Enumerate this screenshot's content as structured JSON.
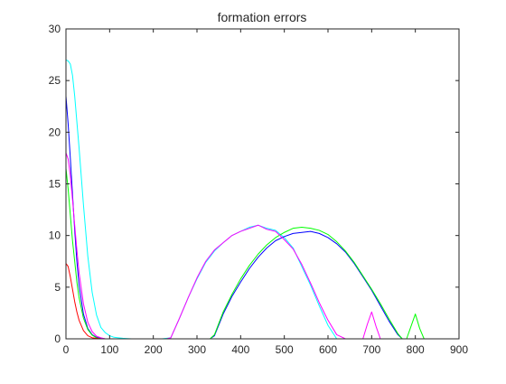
{
  "chart_data": {
    "type": "line",
    "title": "formation errors",
    "xlabel": "",
    "ylabel": "",
    "xlim": [
      0,
      900
    ],
    "ylim": [
      0,
      30
    ],
    "xticks": [
      0,
      100,
      200,
      300,
      400,
      500,
      600,
      700,
      800,
      900
    ],
    "yticks": [
      0,
      5,
      10,
      15,
      20,
      25,
      30
    ],
    "grid": false,
    "legend": "none",
    "series": [
      {
        "color": "#00ffff",
        "x": [
          0,
          5,
          10,
          15,
          20,
          25,
          30,
          40,
          50,
          60,
          70,
          80,
          90,
          100,
          110,
          120,
          130,
          150,
          200,
          220,
          240,
          260,
          280,
          300,
          320,
          340,
          360,
          380,
          400,
          420,
          440,
          460,
          480,
          500,
          520,
          540,
          560,
          580,
          600,
          620,
          640,
          660,
          680,
          700,
          720,
          740,
          760,
          780,
          800,
          850,
          900
        ],
        "y": [
          27,
          26.9,
          26.6,
          25.5,
          23.5,
          21,
          18.5,
          13,
          8,
          4.5,
          2.3,
          1.1,
          0.6,
          0.3,
          0.15,
          0.1,
          0.05,
          0,
          0,
          0,
          0.1,
          2,
          4,
          5.8,
          7.4,
          8.5,
          9.3,
          10,
          10.4,
          10.8,
          11,
          10.7,
          10.5,
          9.8,
          8.8,
          7,
          5.2,
          3.2,
          1.3,
          0,
          0,
          0,
          0,
          0,
          0,
          0,
          0,
          0,
          0,
          0,
          0
        ]
      },
      {
        "color": "#0000ff",
        "x": [
          0,
          5,
          10,
          15,
          20,
          25,
          30,
          40,
          50,
          60,
          70,
          80,
          90,
          100,
          110,
          120,
          200,
          300,
          330,
          340,
          360,
          380,
          400,
          420,
          440,
          460,
          480,
          500,
          520,
          540,
          560,
          580,
          600,
          620,
          640,
          660,
          680,
          700,
          720,
          740,
          760,
          770,
          780,
          800,
          850,
          900
        ],
        "y": [
          23.5,
          20.8,
          17.5,
          14,
          10.5,
          7.5,
          5.2,
          2.4,
          1,
          0.4,
          0.15,
          0.05,
          0,
          0,
          0,
          0,
          0,
          0,
          0,
          0.3,
          2.4,
          4.1,
          5.5,
          6.8,
          7.9,
          8.8,
          9.5,
          9.9,
          10.2,
          10.3,
          10.4,
          10.2,
          9.8,
          9.2,
          8.4,
          7.3,
          6,
          4.7,
          3.2,
          1.7,
          0.4,
          0,
          0,
          0,
          0,
          0
        ]
      },
      {
        "color": "#00ff00",
        "x": [
          0,
          5,
          10,
          15,
          20,
          25,
          30,
          40,
          50,
          60,
          70,
          80,
          90,
          100,
          120,
          200,
          300,
          330,
          340,
          360,
          380,
          400,
          420,
          440,
          460,
          480,
          500,
          520,
          540,
          560,
          580,
          600,
          620,
          640,
          660,
          680,
          700,
          720,
          740,
          760,
          770,
          780,
          790,
          800,
          810,
          820,
          850,
          900
        ],
        "y": [
          16.5,
          14.5,
          12,
          9.5,
          7.5,
          5.5,
          4,
          2,
          0.9,
          0.35,
          0.1,
          0,
          0,
          0,
          0,
          0,
          0,
          0,
          0.4,
          2.6,
          4.3,
          5.8,
          7.1,
          8.2,
          9.1,
          9.8,
          10.3,
          10.7,
          10.8,
          10.7,
          10.5,
          10.1,
          9.4,
          8.5,
          7.4,
          6.1,
          4.8,
          3.4,
          1.9,
          0.5,
          0,
          0,
          1.2,
          2.4,
          1,
          0,
          0,
          0
        ]
      },
      {
        "color": "#ff00ff",
        "x": [
          0,
          5,
          10,
          15,
          20,
          25,
          30,
          40,
          50,
          60,
          70,
          80,
          90,
          100,
          120,
          200,
          230,
          240,
          260,
          280,
          300,
          320,
          340,
          360,
          380,
          400,
          420,
          440,
          460,
          480,
          500,
          520,
          540,
          560,
          580,
          600,
          620,
          640,
          660,
          680,
          690,
          700,
          710,
          720,
          740,
          800,
          900
        ],
        "y": [
          18,
          17.4,
          15.8,
          13.5,
          11,
          8.6,
          6.4,
          3.4,
          1.6,
          0.7,
          0.25,
          0.1,
          0,
          0,
          0,
          0,
          0,
          0.1,
          2,
          4,
          5.9,
          7.5,
          8.6,
          9.3,
          10,
          10.4,
          10.7,
          11,
          10.6,
          10.4,
          9.6,
          8.7,
          7.2,
          5.4,
          3.5,
          1.8,
          0.4,
          0,
          0,
          0,
          1.4,
          2.6,
          1.2,
          0,
          0,
          0,
          0
        ]
      },
      {
        "color": "#ff0000",
        "x": [
          0,
          5,
          10,
          15,
          20,
          25,
          30,
          40,
          50,
          60,
          70,
          80,
          100,
          200,
          300,
          400,
          500,
          600,
          700,
          800,
          900
        ],
        "y": [
          7.3,
          7,
          6,
          4.8,
          3.6,
          2.6,
          1.8,
          0.8,
          0.3,
          0.1,
          0.05,
          0,
          0,
          0,
          0,
          0,
          0,
          0,
          0,
          0,
          0
        ]
      }
    ]
  }
}
